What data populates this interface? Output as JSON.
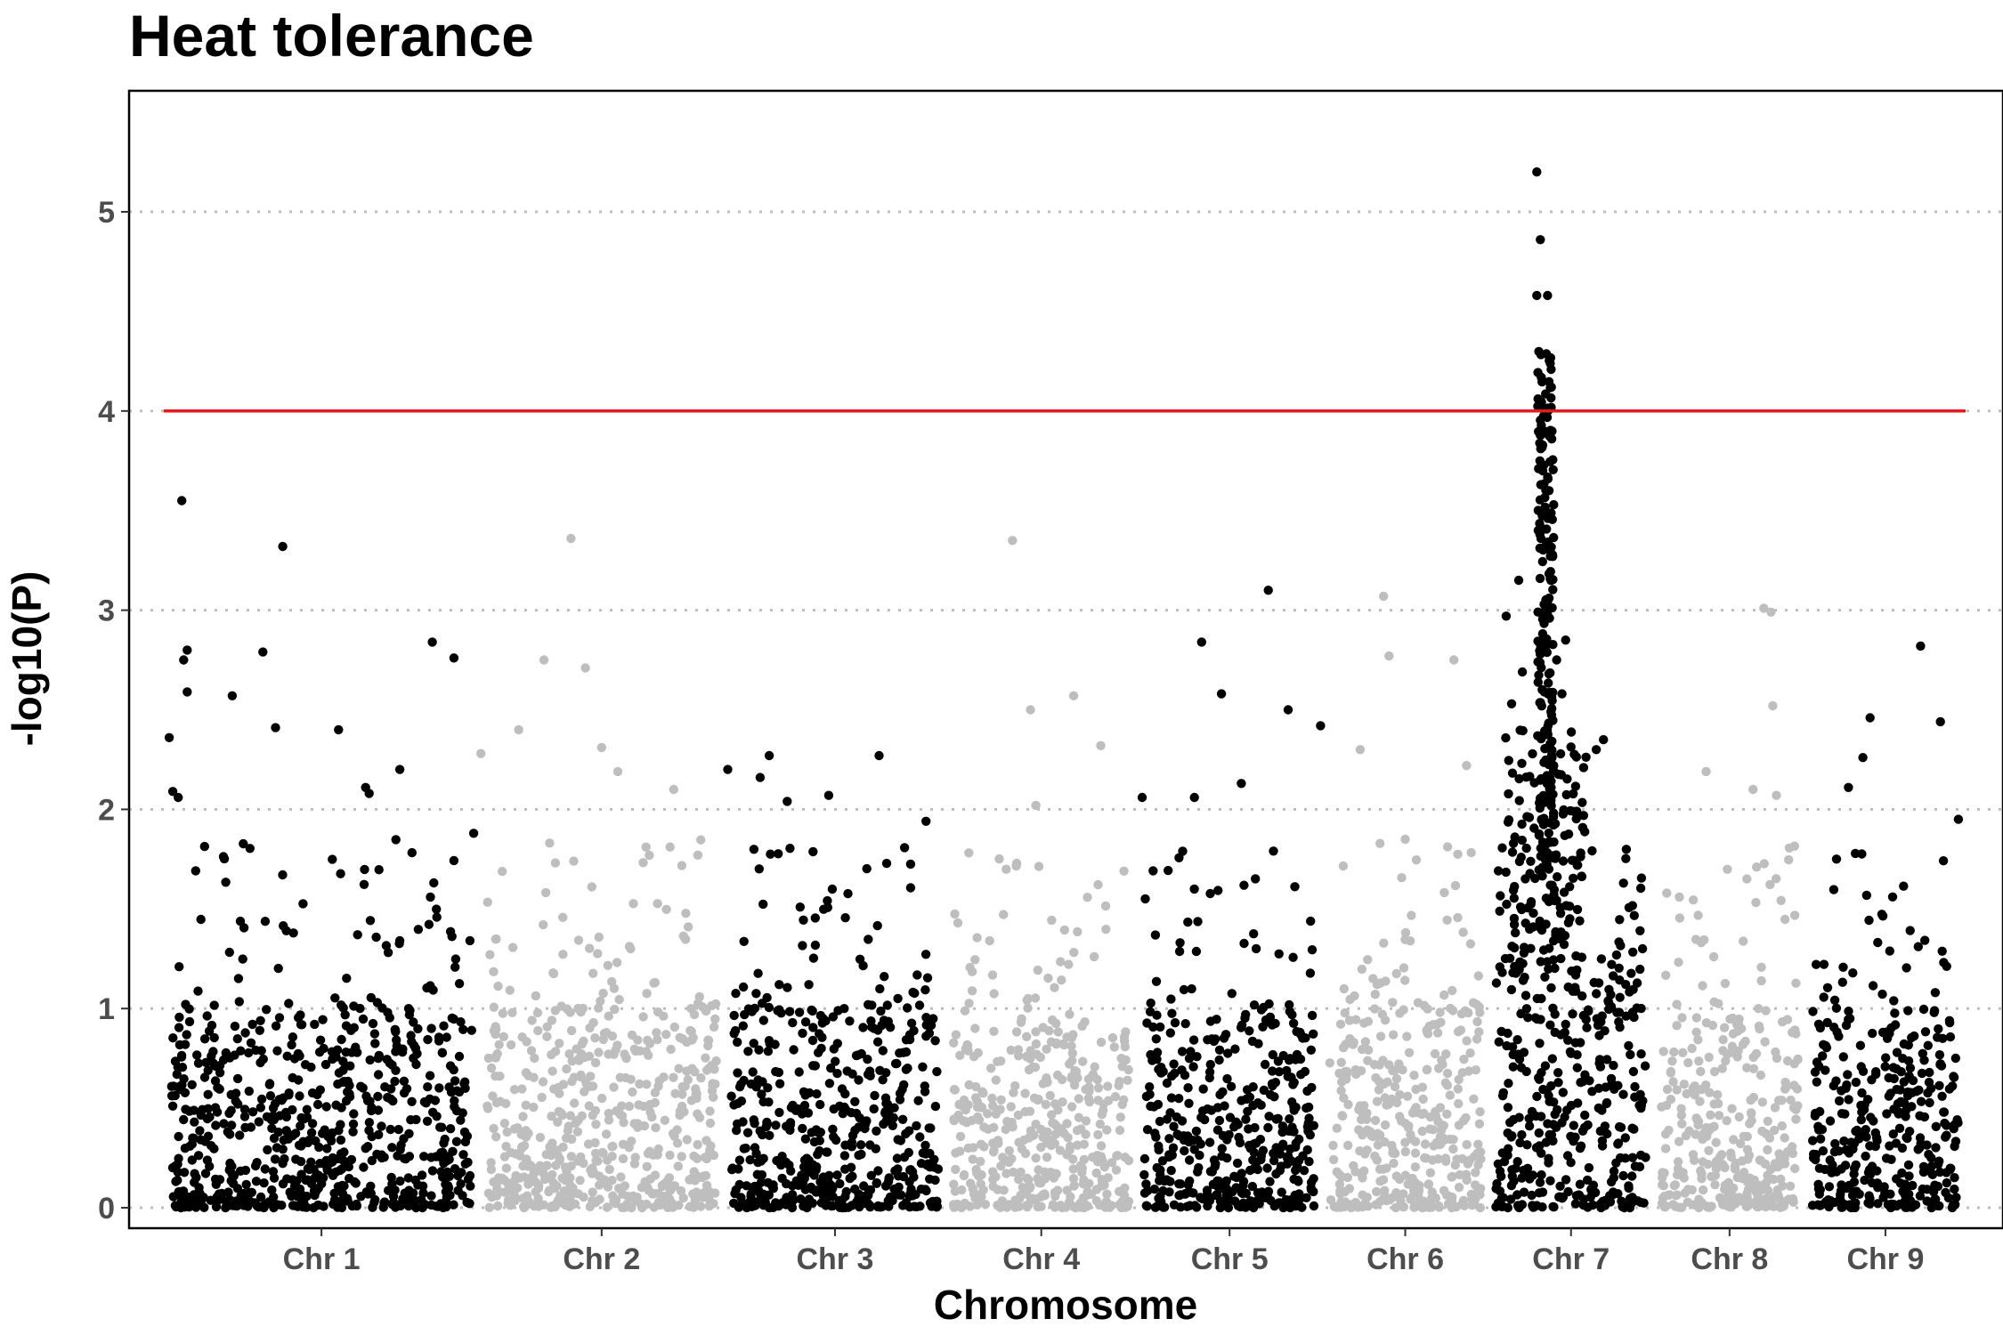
{
  "chart_data": {
    "type": "scatter",
    "subtype": "manhattan",
    "title": "Heat tolerance",
    "xlabel": "Chromosome",
    "ylabel": "-log10(P)",
    "ylim": [
      0,
      5.55
    ],
    "y_ticks": [
      0,
      1,
      2,
      3,
      4,
      5
    ],
    "grid": "horizontal dotted",
    "legend": "none",
    "significance_threshold": 4,
    "threshold_color": "#e41a1c",
    "colors": {
      "odd": "#000000",
      "even": "#bebebe"
    },
    "chromosomes": [
      {
        "name": "Chr 1",
        "label": "Chr 1",
        "color": "#000000",
        "span": [
          0.0,
          0.175
        ],
        "base_max": 0.95,
        "tail_points": [
          [
            0.003,
            2.36
          ],
          [
            0.005,
            2.09
          ],
          [
            0.008,
            2.06
          ],
          [
            0.01,
            3.55
          ],
          [
            0.011,
            2.75
          ],
          [
            0.013,
            2.8
          ],
          [
            0.013,
            2.59
          ],
          [
            0.038,
            2.57
          ],
          [
            0.055,
            2.79
          ],
          [
            0.062,
            2.41
          ],
          [
            0.066,
            3.32
          ],
          [
            0.097,
            2.4
          ],
          [
            0.112,
            2.11
          ],
          [
            0.114,
            2.08
          ],
          [
            0.131,
            2.2
          ],
          [
            0.149,
            2.84
          ],
          [
            0.161,
            2.76
          ],
          [
            0.172,
            1.88
          ]
        ]
      },
      {
        "name": "Chr 2",
        "label": "Chr 2",
        "color": "#bebebe",
        "span": [
          0.175,
          0.311
        ],
        "base_max": 1.0,
        "tail_points": [
          [
            0.176,
            2.28
          ],
          [
            0.197,
            2.4
          ],
          [
            0.211,
            2.75
          ],
          [
            0.226,
            3.36
          ],
          [
            0.234,
            2.71
          ],
          [
            0.243,
            2.31
          ],
          [
            0.252,
            2.19
          ],
          [
            0.283,
            2.1
          ]
        ]
      },
      {
        "name": "Chr 3",
        "label": "Chr 3",
        "color": "#000000",
        "span": [
          0.311,
          0.434
        ],
        "base_max": 1.0,
        "tail_points": [
          [
            0.313,
            2.2
          ],
          [
            0.331,
            2.16
          ],
          [
            0.336,
            2.27
          ],
          [
            0.346,
            2.04
          ],
          [
            0.369,
            2.07
          ],
          [
            0.397,
            2.27
          ],
          [
            0.423,
            1.94
          ]
        ]
      },
      {
        "name": "Chr 4",
        "label": "Chr 4",
        "color": "#bebebe",
        "span": [
          0.434,
          0.54
        ],
        "base_max": 0.9,
        "tail_points": [
          [
            0.481,
            2.5
          ],
          [
            0.471,
            3.35
          ],
          [
            0.505,
            2.57
          ],
          [
            0.52,
            2.32
          ],
          [
            0.484,
            2.02
          ]
        ]
      },
      {
        "name": "Chr 5",
        "label": "Chr 5",
        "color": "#000000",
        "span": [
          0.54,
          0.643
        ],
        "base_max": 0.95,
        "tail_points": [
          [
            0.543,
            2.06
          ],
          [
            0.572,
            2.06
          ],
          [
            0.576,
            2.84
          ],
          [
            0.587,
            2.58
          ],
          [
            0.598,
            2.13
          ],
          [
            0.613,
            3.1
          ],
          [
            0.624,
            2.5
          ],
          [
            0.642,
            2.42
          ]
        ]
      },
      {
        "name": "Chr 6",
        "label": "Chr 6",
        "color": "#bebebe",
        "span": [
          0.643,
          0.735
        ],
        "base_max": 1.0,
        "tail_points": [
          [
            0.664,
            2.3
          ],
          [
            0.677,
            3.07
          ],
          [
            0.68,
            2.77
          ],
          [
            0.716,
            2.75
          ],
          [
            0.689,
            1.85
          ],
          [
            0.723,
            2.22
          ]
        ]
      },
      {
        "name": "Chr 7",
        "label": "Chr 7",
        "color": "#000000",
        "span": [
          0.735,
          0.827
        ],
        "base_max": 1.3,
        "peak": {
          "x": 0.767,
          "width": 0.009,
          "min": 1.65,
          "max": 4.3,
          "count": 200
        },
        "tail_points": [
          [
            0.762,
            5.2
          ],
          [
            0.764,
            4.86
          ],
          [
            0.762,
            4.58
          ],
          [
            0.768,
            4.58
          ],
          [
            0.745,
            2.97
          ],
          [
            0.748,
            2.53
          ],
          [
            0.752,
            3.15
          ],
          [
            0.754,
            2.69
          ],
          [
            0.778,
            2.85
          ],
          [
            0.788,
            2.21
          ],
          [
            0.795,
            2.3
          ],
          [
            0.799,
            2.35
          ],
          [
            0.776,
            2.58
          ],
          [
            0.773,
            2.75
          ]
        ]
      },
      {
        "name": "Chr 8",
        "label": "Chr 8",
        "color": "#bebebe",
        "span": [
          0.827,
          0.911
        ],
        "base_max": 0.95,
        "tail_points": [
          [
            0.888,
            3.01
          ],
          [
            0.892,
            2.99
          ],
          [
            0.893,
            2.52
          ],
          [
            0.856,
            2.19
          ],
          [
            0.882,
            2.1
          ],
          [
            0.895,
            2.07
          ]
        ]
      },
      {
        "name": "Chr 9",
        "label": "Chr 9",
        "color": "#000000",
        "span": [
          0.911,
          1.0
        ],
        "base_max": 0.95,
        "tail_points": [
          [
            0.935,
            2.11
          ],
          [
            0.943,
            2.26
          ],
          [
            0.947,
            2.46
          ],
          [
            0.975,
            2.82
          ],
          [
            0.986,
            2.44
          ],
          [
            0.996,
            1.95
          ]
        ]
      }
    ]
  }
}
